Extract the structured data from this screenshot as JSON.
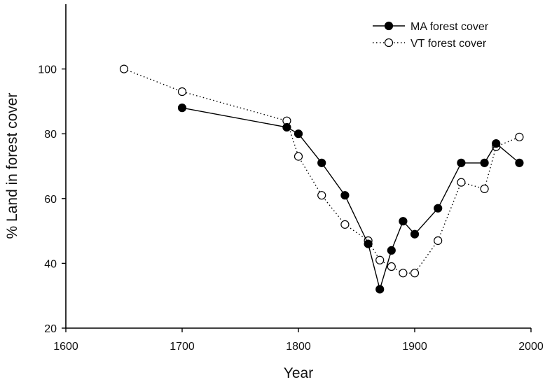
{
  "chart_data": {
    "type": "line",
    "title": "",
    "xlabel": "Year",
    "ylabel": "% Land in forest cover",
    "xlim": [
      1600,
      2000
    ],
    "ylim": [
      20,
      120
    ],
    "xticks": [
      "1600",
      "1700",
      "1800",
      "1900",
      "2000"
    ],
    "yticks": [
      "20",
      "40",
      "60",
      "80",
      "100"
    ],
    "grid": false,
    "legend_position": "top-right",
    "series": [
      {
        "name": "MA forest cover",
        "style": "solid line, filled circle markers",
        "color": "#000000",
        "x": [
          1700,
          1790,
          1800,
          1820,
          1840,
          1860,
          1870,
          1880,
          1890,
          1900,
          1920,
          1940,
          1960,
          1970,
          1990
        ],
        "y": [
          88,
          82,
          80,
          71,
          61,
          46,
          32,
          44,
          53,
          49,
          57,
          71,
          71,
          77,
          71
        ]
      },
      {
        "name": "VT forest cover",
        "style": "dotted line, open circle markers",
        "color": "#000000",
        "x": [
          1650,
          1700,
          1790,
          1800,
          1820,
          1840,
          1860,
          1870,
          1880,
          1890,
          1900,
          1920,
          1940,
          1960,
          1970,
          1990
        ],
        "y": [
          100,
          93,
          84,
          73,
          61,
          52,
          47,
          41,
          39,
          37,
          37,
          47,
          65,
          63,
          76,
          79
        ]
      }
    ]
  }
}
